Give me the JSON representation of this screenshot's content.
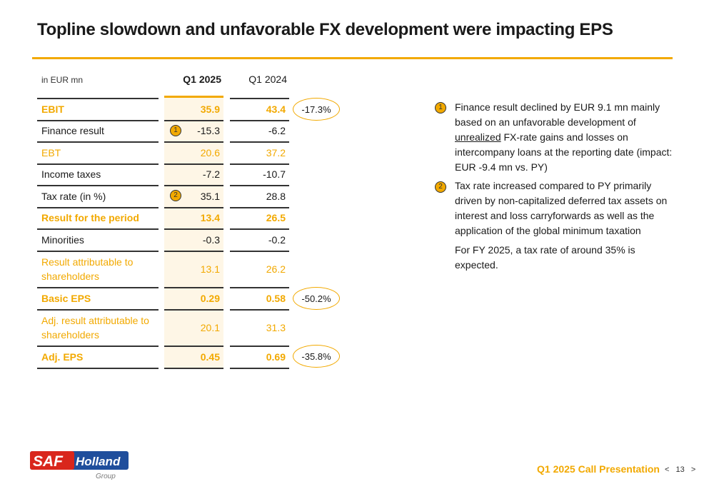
{
  "title": "Topline slowdown and unfavorable FX development were impacting EPS",
  "table": {
    "unit": "in EUR mn",
    "col_q1_2025": "Q1 2025",
    "col_q1_2024": "Q1 2024",
    "rows": [
      {
        "label": "EBIT",
        "q1_2025": "35.9",
        "q1_2024": "43.4"
      },
      {
        "label": "Finance result",
        "q1_2025": "-15.3",
        "q1_2024": "-6.2"
      },
      {
        "label": "EBT",
        "q1_2025": "20.6",
        "q1_2024": "37.2"
      },
      {
        "label": "Income taxes",
        "q1_2025": "-7.2",
        "q1_2024": "-10.7"
      },
      {
        "label": "Tax rate (in %)",
        "q1_2025": "35.1",
        "q1_2024": "28.8"
      },
      {
        "label": "Result for the period",
        "q1_2025": "13.4",
        "q1_2024": "26.5"
      },
      {
        "label": "Minorities",
        "q1_2025": "-0.3",
        "q1_2024": "-0.2"
      },
      {
        "label": "Result attributable to shareholders",
        "q1_2025": "13.1",
        "q1_2024": "26.2"
      },
      {
        "label": "Basic EPS",
        "q1_2025": "0.29",
        "q1_2024": "0.58"
      },
      {
        "label": "Adj. result attributable to shareholders",
        "q1_2025": "20.1",
        "q1_2024": "31.3"
      },
      {
        "label": "Adj. EPS",
        "q1_2025": "0.45",
        "q1_2024": "0.69"
      }
    ],
    "changes": {
      "ebit": "-17.3%",
      "basic_eps": "-50.2%",
      "adj_eps": "-35.8%"
    },
    "markers": {
      "finance_result": "1",
      "tax_rate": "2"
    }
  },
  "notes": {
    "note1_marker": "1",
    "note1_a": "Finance result declined by EUR 9.1 mn mainly based on an unfavorable development of",
    "note1_u": "unrealized",
    "note1_b": "FX-rate gains and losses on intercompany loans at the reporting date (impact: EUR -9.4 mn vs. PY)",
    "note2_marker": "2",
    "note2": "Tax rate increased compared to PY primarily driven by non-capitalized deferred tax assets on interest and loss carryforwards as well as the application of the global minimum taxation",
    "note3": "For FY 2025, a tax rate of around 35% is expected."
  },
  "footer": {
    "logo_text_saf": "SAF",
    "logo_text_holland": "Holland",
    "logo_text_group": "Group",
    "presentation": "Q1 2025 Call Presentation",
    "prev": "<",
    "page": "13",
    "next": ">"
  },
  "colors": {
    "accent": "#f2a900",
    "logo_red": "#d9261c",
    "logo_blue": "#1f4e9c"
  }
}
